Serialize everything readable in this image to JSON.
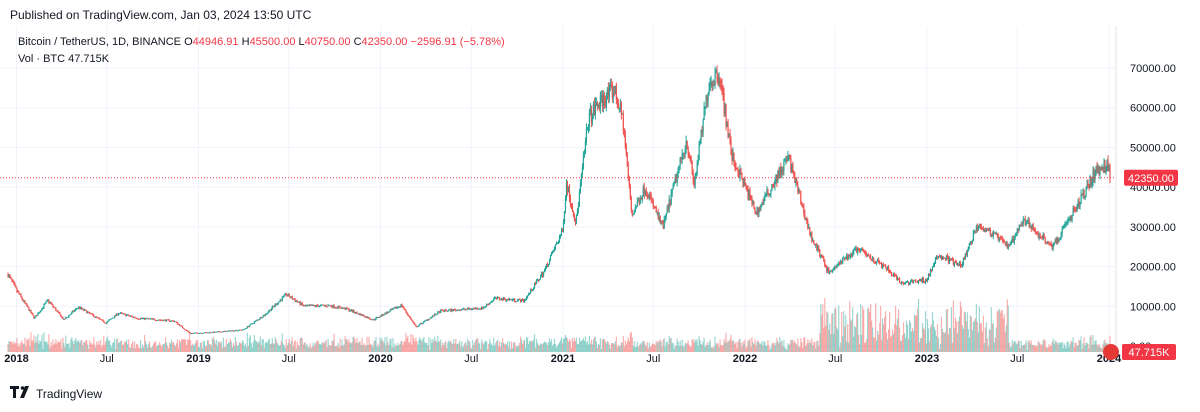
{
  "header": {
    "published": "Published on TradingView.com, Jan 03, 2024 13:50 UTC"
  },
  "legend": {
    "symbol": "Bitcoin / TetherUS, 1D, BINANCE",
    "open_label": "O",
    "open": "44946.91",
    "high_label": "H",
    "high": "45500.00",
    "low_label": "L",
    "low": "40750.00",
    "close_label": "C",
    "close": "42350.00",
    "change": "−2596.91 (−5.78%)",
    "vol_label": "Vol · BTC",
    "vol_value": "47.715K"
  },
  "footer": {
    "brand": "TradingView"
  },
  "colors": {
    "up": "#26a69a",
    "down": "#ef5350",
    "grid": "#f0f3fa",
    "price_line": "#f23645"
  },
  "chart_data": {
    "type": "candlestick",
    "symbol": "BTCUSDT",
    "interval": "1D",
    "exchange": "BINANCE",
    "y_axis": {
      "min": 0,
      "max": 70000,
      "ticks": [
        0,
        10000,
        20000,
        30000,
        40000,
        50000,
        60000,
        70000
      ],
      "tick_labels": [
        "0.00",
        "10000.00",
        "20000.00",
        "30000.00",
        "40000.00",
        "50000.00",
        "60000.00",
        "70000.00"
      ]
    },
    "x_axis": {
      "range": [
        "2017-12-15",
        "2024-01-03"
      ],
      "ticks": [
        {
          "date": "2018-01-01",
          "label": "2018",
          "bold": true
        },
        {
          "date": "2018-07-01",
          "label": "Jul",
          "bold": false
        },
        {
          "date": "2019-01-01",
          "label": "2019",
          "bold": true
        },
        {
          "date": "2019-07-01",
          "label": "Jul",
          "bold": false
        },
        {
          "date": "2020-01-01",
          "label": "2020",
          "bold": true
        },
        {
          "date": "2020-07-01",
          "label": "Jul",
          "bold": false
        },
        {
          "date": "2021-01-01",
          "label": "2021",
          "bold": true
        },
        {
          "date": "2021-07-01",
          "label": "Jul",
          "bold": false
        },
        {
          "date": "2022-01-01",
          "label": "2022",
          "bold": true
        },
        {
          "date": "2022-07-01",
          "label": "Jul",
          "bold": false
        },
        {
          "date": "2023-01-01",
          "label": "2023",
          "bold": true
        },
        {
          "date": "2023-07-01",
          "label": "Jul",
          "bold": false
        },
        {
          "date": "2024-01-01",
          "label": "2024",
          "bold": true
        }
      ]
    },
    "last_price": 42350.0,
    "last_price_label": "42350.00",
    "volume_badge_label": "47.715K",
    "grid": true,
    "price_path": [
      [
        "2017-12-15",
        18000
      ],
      [
        "2018-01-01",
        14000
      ],
      [
        "2018-02-06",
        7000
      ],
      [
        "2018-03-05",
        11500
      ],
      [
        "2018-04-06",
        6600
      ],
      [
        "2018-05-05",
        9800
      ],
      [
        "2018-06-29",
        5800
      ],
      [
        "2018-07-25",
        8300
      ],
      [
        "2018-09-01",
        7000
      ],
      [
        "2018-11-13",
        6300
      ],
      [
        "2018-12-15",
        3200
      ],
      [
        "2019-02-01",
        3450
      ],
      [
        "2019-04-01",
        4100
      ],
      [
        "2019-05-15",
        8000
      ],
      [
        "2019-06-26",
        13000
      ],
      [
        "2019-08-01",
        10000
      ],
      [
        "2019-09-20",
        10200
      ],
      [
        "2019-10-26",
        9300
      ],
      [
        "2019-12-17",
        6600
      ],
      [
        "2020-02-12",
        10300
      ],
      [
        "2020-03-12",
        4800
      ],
      [
        "2020-05-01",
        8800
      ],
      [
        "2020-07-25",
        9600
      ],
      [
        "2020-08-17",
        12000
      ],
      [
        "2020-10-15",
        11400
      ],
      [
        "2020-11-25",
        19000
      ],
      [
        "2020-12-31",
        29000
      ],
      [
        "2021-01-08",
        41000
      ],
      [
        "2021-01-27",
        31000
      ],
      [
        "2021-02-21",
        57000
      ],
      [
        "2021-03-13",
        61000
      ],
      [
        "2021-04-14",
        64500
      ],
      [
        "2021-05-01",
        57000
      ],
      [
        "2021-05-19",
        33000
      ],
      [
        "2021-06-15",
        40000
      ],
      [
        "2021-07-20",
        29800
      ],
      [
        "2021-09-06",
        52000
      ],
      [
        "2021-09-21",
        40500
      ],
      [
        "2021-10-20",
        66000
      ],
      [
        "2021-11-10",
        69000
      ],
      [
        "2021-12-05",
        48000
      ],
      [
        "2022-01-24",
        33500
      ],
      [
        "2022-03-29",
        47500
      ],
      [
        "2022-05-12",
        28000
      ],
      [
        "2022-06-18",
        18500
      ],
      [
        "2022-08-15",
        24500
      ],
      [
        "2022-10-15",
        19200
      ],
      [
        "2022-11-09",
        15800
      ],
      [
        "2022-12-30",
        16500
      ],
      [
        "2023-01-25",
        23000
      ],
      [
        "2023-03-10",
        20000
      ],
      [
        "2023-04-14",
        30800
      ],
      [
        "2023-06-15",
        25000
      ],
      [
        "2023-07-14",
        31500
      ],
      [
        "2023-09-11",
        25000
      ],
      [
        "2023-10-23",
        34000
      ],
      [
        "2023-12-05",
        44000
      ],
      [
        "2024-01-02",
        45500
      ],
      [
        "2024-01-03",
        42350
      ]
    ]
  }
}
